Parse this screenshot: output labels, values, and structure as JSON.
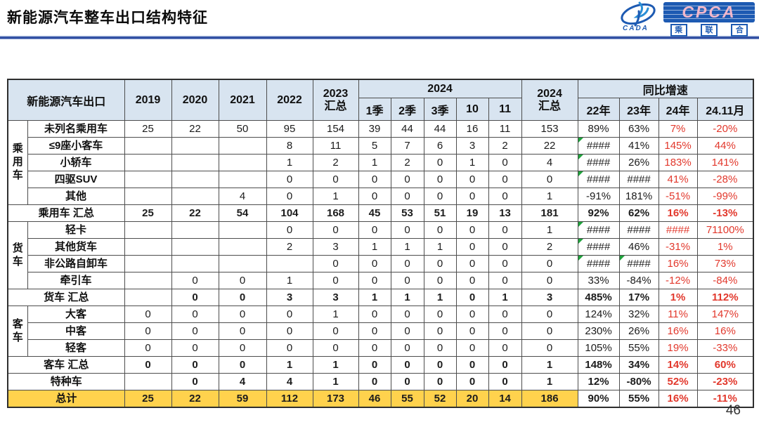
{
  "title": "新能源汽车整车出口结构特征",
  "page_number": "46",
  "logo": {
    "cada_label": "CADA",
    "cpca_label": "CPCA",
    "sub_chars": [
      "乘",
      "联",
      "合"
    ]
  },
  "colors": {
    "header_bg": "#d8e4f0",
    "total_bg": "#ffd24d",
    "negative_red": "#e2382c",
    "triangle_green": "#1fa33c",
    "divider_blue": "#24439c",
    "logo_blue": "#1d5ab2",
    "logo_pink": "#f3b8cb"
  },
  "table": {
    "corner_label": "新能源汽车出口",
    "year_cols": [
      "2019",
      "2020",
      "2021",
      "2022"
    ],
    "total_2023": "2023\n汇总",
    "group_2024": "2024",
    "sub_2024": [
      "1季",
      "2季",
      "3季",
      "10",
      "11"
    ],
    "total_2024": "2024\n汇总",
    "growth_label": "同比增速",
    "growth_cols": [
      "22年",
      "23年",
      "24年",
      "24.11月"
    ],
    "groups": [
      {
        "label": "乘\n用\n车",
        "span": 5
      },
      {
        "label": "货\n车",
        "span": 4
      },
      {
        "label": "客\n车",
        "span": 3
      }
    ],
    "rows": [
      {
        "type": "data",
        "group": 0,
        "label": "未列名乘用车",
        "values": [
          "25",
          "22",
          "50",
          "95",
          "154",
          "39",
          "44",
          "44",
          "16",
          "11",
          "153"
        ],
        "growth": [
          "89%",
          "63%",
          "7%",
          "-20%"
        ]
      },
      {
        "type": "data",
        "label": "≤9座小客车",
        "values": [
          "",
          "",
          "",
          "8",
          "11",
          "5",
          "7",
          "6",
          "3",
          "2",
          "22"
        ],
        "growth": [
          "####",
          "41%",
          "145%",
          "44%"
        ],
        "tri": [
          true,
          false,
          false,
          false
        ]
      },
      {
        "type": "data",
        "label": "小轿车",
        "values": [
          "",
          "",
          "",
          "1",
          "2",
          "1",
          "2",
          "0",
          "1",
          "0",
          "4"
        ],
        "growth": [
          "####",
          "26%",
          "183%",
          "141%"
        ],
        "tri": [
          true,
          false,
          false,
          false
        ]
      },
      {
        "type": "data",
        "label": "四驱SUV",
        "values": [
          "",
          "",
          "",
          "0",
          "0",
          "0",
          "0",
          "0",
          "0",
          "0",
          "0"
        ],
        "growth": [
          "####",
          "####",
          "41%",
          "-28%"
        ],
        "tri": [
          true,
          false,
          false,
          false
        ]
      },
      {
        "type": "data",
        "label": "其他",
        "values": [
          "",
          "",
          "4",
          "0",
          "1",
          "0",
          "0",
          "0",
          "0",
          "0",
          "1"
        ],
        "growth": [
          "-91%",
          "181%",
          "-51%",
          "-99%"
        ]
      },
      {
        "type": "summary",
        "label": "乘用车 汇总",
        "values": [
          "25",
          "22",
          "54",
          "104",
          "168",
          "45",
          "53",
          "51",
          "19",
          "13",
          "181"
        ],
        "growth": [
          "92%",
          "62%",
          "16%",
          "-13%"
        ]
      },
      {
        "type": "data",
        "group": 1,
        "label": "轻卡",
        "values": [
          "",
          "",
          "",
          "0",
          "0",
          "0",
          "0",
          "0",
          "0",
          "0",
          "1"
        ],
        "growth": [
          "####",
          "####",
          "####",
          "71100%"
        ],
        "tri": [
          true,
          false,
          false,
          false
        ]
      },
      {
        "type": "data",
        "label": "其他货车",
        "values": [
          "",
          "",
          "",
          "2",
          "3",
          "1",
          "1",
          "1",
          "0",
          "0",
          "2"
        ],
        "growth": [
          "####",
          "46%",
          "-31%",
          "1%"
        ],
        "tri": [
          true,
          false,
          false,
          false
        ]
      },
      {
        "type": "data",
        "label": "非公路自卸车",
        "values": [
          "",
          "",
          "",
          "",
          "0",
          "0",
          "0",
          "0",
          "0",
          "0",
          "0"
        ],
        "growth": [
          "####",
          "####",
          "16%",
          "73%"
        ],
        "tri": [
          true,
          true,
          false,
          false
        ]
      },
      {
        "type": "data",
        "label": "牵引车",
        "values": [
          "",
          "0",
          "0",
          "1",
          "0",
          "0",
          "0",
          "0",
          "0",
          "0",
          "0"
        ],
        "growth": [
          "33%",
          "-84%",
          "-12%",
          "-84%"
        ]
      },
      {
        "type": "summary",
        "label": "货车 汇总",
        "values": [
          "",
          "0",
          "0",
          "3",
          "3",
          "1",
          "1",
          "1",
          "0",
          "1",
          "3"
        ],
        "growth": [
          "485%",
          "17%",
          "1%",
          "112%"
        ]
      },
      {
        "type": "data",
        "group": 2,
        "label": "大客",
        "values": [
          "0",
          "0",
          "0",
          "0",
          "1",
          "0",
          "0",
          "0",
          "0",
          "0",
          "0"
        ],
        "growth": [
          "124%",
          "32%",
          "11%",
          "147%"
        ]
      },
      {
        "type": "data",
        "label": "中客",
        "values": [
          "0",
          "0",
          "0",
          "0",
          "0",
          "0",
          "0",
          "0",
          "0",
          "0",
          "0"
        ],
        "growth": [
          "230%",
          "26%",
          "16%",
          "16%"
        ]
      },
      {
        "type": "data",
        "label": "轻客",
        "values": [
          "0",
          "0",
          "0",
          "0",
          "0",
          "0",
          "0",
          "0",
          "0",
          "0",
          "0"
        ],
        "growth": [
          "105%",
          "55%",
          "19%",
          "-33%"
        ]
      },
      {
        "type": "summary",
        "label": "客车 汇总",
        "values": [
          "0",
          "0",
          "0",
          "1",
          "1",
          "0",
          "0",
          "0",
          "0",
          "0",
          "1"
        ],
        "growth": [
          "148%",
          "34%",
          "14%",
          "60%"
        ]
      },
      {
        "type": "summary",
        "label": "特种车",
        "values": [
          "",
          "0",
          "4",
          "4",
          "1",
          "0",
          "0",
          "0",
          "0",
          "0",
          "1"
        ],
        "growth": [
          "12%",
          "-80%",
          "52%",
          "-23%"
        ]
      },
      {
        "type": "total",
        "label": "总计",
        "values": [
          "25",
          "22",
          "59",
          "112",
          "173",
          "46",
          "55",
          "52",
          "20",
          "14",
          "186"
        ],
        "growth": [
          "90%",
          "55%",
          "16%",
          "-11%"
        ]
      }
    ]
  }
}
